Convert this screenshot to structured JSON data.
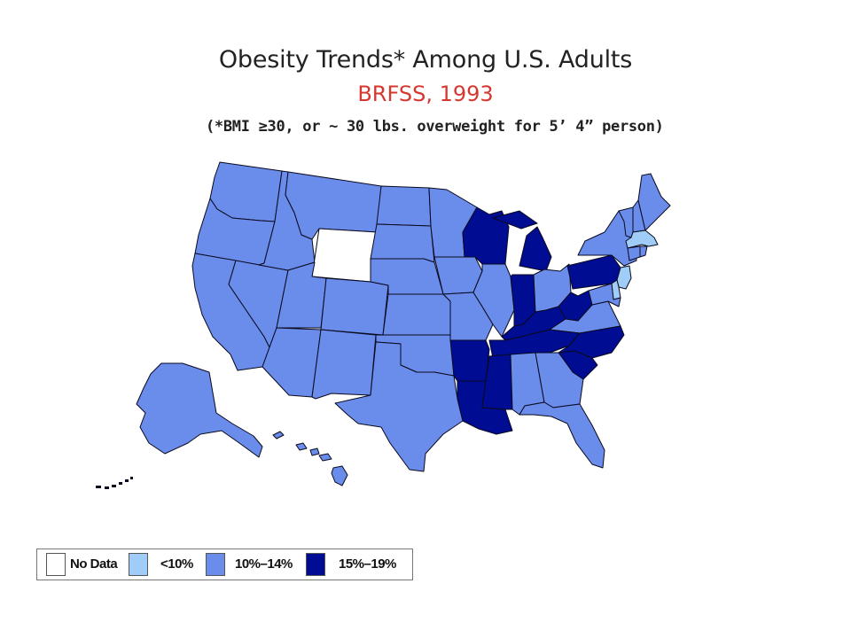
{
  "title": "Obesity Trends* Among U.S. Adults",
  "subtitle": "BRFSS, 1993",
  "note": "(*BMI ≥30, or ~ 30 lbs. overweight for 5’ 4” person)",
  "colors": {
    "no_data": "#ffffff",
    "lt10": "#9fcdf7",
    "p10_14": "#6a8ceb",
    "p15_19": "#000c91",
    "border": "#0a0a1e"
  },
  "legend": [
    {
      "key": "no_data",
      "label": "No Data"
    },
    {
      "key": "lt10",
      "label": "<10%"
    },
    {
      "key": "p10_14",
      "label": "10%–14%"
    },
    {
      "key": "p15_19",
      "label": "15%–19%"
    }
  ],
  "categories": {
    "no_data": [
      "WY"
    ],
    "lt10": [
      "MA",
      "NJ",
      "DE"
    ],
    "p15_19": [
      "WI",
      "MI",
      "PA",
      "IN",
      "KY",
      "WV",
      "TN",
      "NC",
      "SC",
      "AR",
      "MS",
      "LA"
    ],
    "p10_14": [
      "WA",
      "OR",
      "CA",
      "NV",
      "ID",
      "MT",
      "UT",
      "AZ",
      "CO",
      "NM",
      "ND",
      "SD",
      "NE",
      "KS",
      "OK",
      "TX",
      "MN",
      "IA",
      "MO",
      "IL",
      "OH",
      "VA",
      "AL",
      "GA",
      "FL",
      "NY",
      "VT",
      "NH",
      "ME",
      "CT",
      "RI",
      "MD",
      "AK",
      "HI"
    ]
  }
}
